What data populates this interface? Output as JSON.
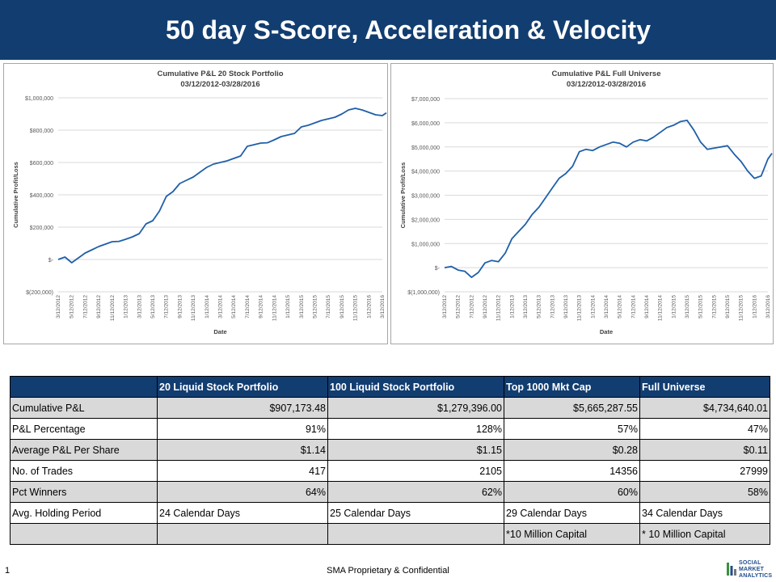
{
  "header": {
    "title": "50 day S-Score, Acceleration & Velocity"
  },
  "chart_data": [
    {
      "type": "line",
      "title": "Cumulative P&L 20 Stock Portfolio",
      "subtitle": "03/12/2012-03/28/2016",
      "xlabel": "Date",
      "ylabel": "Cumulative Profit/Loss",
      "ylim": [
        -200000,
        1000000
      ],
      "yticks": [
        -200000,
        0,
        200000,
        400000,
        600000,
        800000,
        1000000
      ],
      "ytick_labels": [
        "$(200,000)",
        "$-",
        "$200,000",
        "$400,000",
        "$600,000",
        "$800,000",
        "$1,000,000"
      ],
      "xtick_labels": [
        "3/12/2012",
        "5/12/2012",
        "7/12/2012",
        "9/12/2012",
        "11/12/2012",
        "1/12/2013",
        "3/12/2013",
        "5/12/2013",
        "7/12/2013",
        "9/12/2013",
        "11/12/2013",
        "1/12/2014",
        "3/12/2014",
        "5/12/2014",
        "7/12/2014",
        "9/12/2014",
        "11/12/2014",
        "1/12/2015",
        "3/12/2015",
        "5/12/2015",
        "7/12/2015",
        "9/12/2015",
        "11/12/2015",
        "1/12/2016",
        "3/12/2016"
      ],
      "color": "#1f5fa8",
      "x": [
        0,
        0.5,
        1,
        1.5,
        2,
        2.5,
        3,
        3.5,
        4,
        4.5,
        5,
        5.5,
        6,
        6.5,
        7,
        7.5,
        8,
        8.5,
        9,
        9.5,
        10,
        10.5,
        11,
        11.5,
        12,
        12.5,
        13,
        13.5,
        14,
        14.5,
        15,
        15.5,
        16,
        16.5,
        17,
        17.5,
        18,
        18.5,
        19,
        19.5,
        20,
        20.5,
        21,
        21.5,
        22,
        22.5,
        23,
        23.5,
        24,
        24.3
      ],
      "values": [
        0,
        15000,
        -20000,
        10000,
        40000,
        60000,
        80000,
        95000,
        110000,
        112000,
        125000,
        140000,
        160000,
        220000,
        240000,
        300000,
        390000,
        420000,
        470000,
        490000,
        510000,
        540000,
        570000,
        590000,
        600000,
        610000,
        625000,
        640000,
        700000,
        710000,
        720000,
        722000,
        740000,
        760000,
        770000,
        780000,
        820000,
        830000,
        845000,
        860000,
        870000,
        880000,
        900000,
        925000,
        935000,
        925000,
        910000,
        895000,
        890000,
        907173
      ]
    },
    {
      "type": "line",
      "title": "Cumulative P&L Full Universe",
      "subtitle": "03/12/2012-03/28/2016",
      "xlabel": "Date",
      "ylabel": "Cumulative Profit/Loss",
      "ylim": [
        -1000000,
        7000000
      ],
      "yticks": [
        -1000000,
        0,
        1000000,
        2000000,
        3000000,
        4000000,
        5000000,
        6000000,
        7000000
      ],
      "ytick_labels": [
        "$(1,000,000)",
        "$-",
        "$1,000,000",
        "$2,000,000",
        "$3,000,000",
        "$4,000,000",
        "$5,000,000",
        "$6,000,000",
        "$7,000,000"
      ],
      "xtick_labels": [
        "3/12/2012",
        "5/12/2012",
        "7/12/2012",
        "9/12/2012",
        "11/12/2012",
        "1/12/2013",
        "3/12/2013",
        "5/12/2013",
        "7/12/2013",
        "9/12/2013",
        "11/12/2013",
        "1/12/2014",
        "3/12/2014",
        "5/12/2014",
        "7/12/2014",
        "9/12/2014",
        "11/12/2014",
        "1/12/2015",
        "3/12/2015",
        "5/12/2015",
        "7/12/2015",
        "9/12/2015",
        "11/12/2015",
        "1/12/2016",
        "3/12/2016"
      ],
      "color": "#1f5fa8",
      "x": [
        0,
        0.5,
        1,
        1.5,
        2,
        2.5,
        3,
        3.5,
        4,
        4.5,
        5,
        5.5,
        6,
        6.5,
        7,
        7.5,
        8,
        8.5,
        9,
        9.5,
        10,
        10.5,
        11,
        11.5,
        12,
        12.5,
        13,
        13.5,
        14,
        14.5,
        15,
        15.5,
        16,
        16.5,
        17,
        17.5,
        18,
        18.5,
        19,
        19.5,
        20,
        20.5,
        21,
        21.5,
        22,
        22.5,
        23,
        23.5,
        24,
        24.3
      ],
      "values": [
        0,
        50000,
        -100000,
        -150000,
        -400000,
        -200000,
        200000,
        300000,
        250000,
        600000,
        1200000,
        1500000,
        1800000,
        2200000,
        2500000,
        2900000,
        3300000,
        3700000,
        3900000,
        4200000,
        4800000,
        4900000,
        4850000,
        5000000,
        5100000,
        5200000,
        5150000,
        5000000,
        5200000,
        5300000,
        5250000,
        5400000,
        5600000,
        5800000,
        5900000,
        6050000,
        6100000,
        5700000,
        5200000,
        4900000,
        4950000,
        5000000,
        5050000,
        4700000,
        4400000,
        4000000,
        3700000,
        3800000,
        4500000,
        4734640
      ]
    }
  ],
  "table": {
    "headers": [
      "",
      "20 Liquid Stock Portfolio",
      "100 Liquid Stock Portfolio",
      "Top 1000  Mkt Cap",
      "Full Universe"
    ],
    "rows": [
      [
        "Cumulative P&L",
        "$907,173.48",
        "$1,279,396.00",
        "$5,665,287.55",
        "$4,734,640.01"
      ],
      [
        "P&L Percentage",
        "91%",
        "128%",
        "57%",
        "47%"
      ],
      [
        "Average P&L Per Share",
        "$1.14",
        "$1.15",
        "$0.28",
        "$0.11"
      ],
      [
        "No. of Trades",
        "417",
        "2105",
        "14356",
        "27999"
      ],
      [
        "Pct Winners",
        "64%",
        "62%",
        "60%",
        "58%"
      ],
      [
        "Avg. Holding Period",
        "24 Calendar Days",
        "25 Calendar Days",
        "29 Calendar Days",
        "34 Calendar Days"
      ],
      [
        "",
        "",
        "",
        "*10 Million Capital",
        "* 10 Million Capital"
      ]
    ]
  },
  "footer": {
    "page_number": "1",
    "text": "SMA Proprietary & Confidential",
    "logo_lines": [
      "SOCIAL",
      "MARKET",
      "ANALYTICS"
    ]
  }
}
